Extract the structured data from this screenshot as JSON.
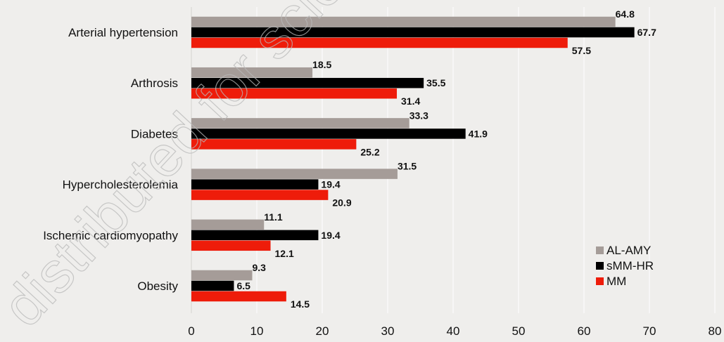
{
  "colors": {
    "background": "#efeeec",
    "grid": "#ffffff",
    "AL-AMY": "#a59c98",
    "sMM-HR": "#000000",
    "MM": "#ee1c0a"
  },
  "watermark": "distributed for scientific purposes",
  "chart_data": {
    "type": "bar",
    "orientation": "horizontal",
    "categories": [
      "Arterial hypertension",
      "Arthrosis",
      "Diabetes",
      "Hypercholesterolemia",
      "Ischemic cardiomyopathy",
      "Obesity"
    ],
    "series": [
      {
        "name": "AL-AMY",
        "color": "#a59c98",
        "values": [
          64.8,
          18.5,
          33.3,
          31.5,
          11.1,
          9.3
        ]
      },
      {
        "name": "sMM-HR",
        "color": "#000000",
        "values": [
          67.7,
          35.5,
          41.9,
          19.4,
          19.4,
          6.5
        ]
      },
      {
        "name": "MM",
        "color": "#ee1c0a",
        "values": [
          57.5,
          31.4,
          25.2,
          20.9,
          12.1,
          14.5
        ]
      }
    ],
    "xlim": [
      0,
      80
    ],
    "xticks": [
      0,
      10,
      20,
      30,
      40,
      50,
      60,
      70,
      80
    ],
    "grid": true,
    "legend": "bottom-right",
    "data_labels": true
  }
}
